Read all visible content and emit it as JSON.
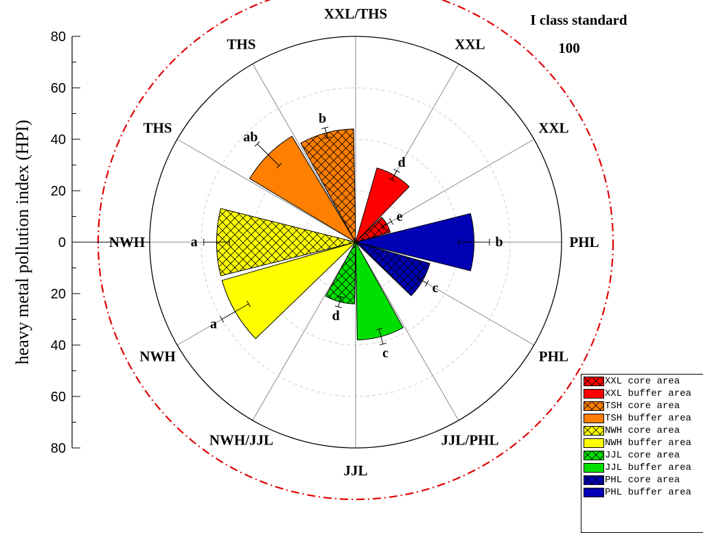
{
  "chart_data": {
    "type": "polar-bar",
    "ylabel": "heavy metal pollution index (HPI)",
    "axis_ticks": [
      "80",
      "60",
      "40",
      "20",
      "0",
      "20",
      "40",
      "60",
      "80"
    ],
    "rmax": 80,
    "reference": {
      "label": "I class standard",
      "value": "100"
    },
    "directions": [
      {
        "label": "XXL/THS",
        "angle": 0
      },
      {
        "label": "XXL",
        "angle": 30
      },
      {
        "label": "XXL",
        "angle": 60
      },
      {
        "label": "PHL",
        "angle": 90
      },
      {
        "label": "PHL",
        "angle": 120
      },
      {
        "label": "JJL/PHL",
        "angle": 150
      },
      {
        "label": "JJL",
        "angle": 180
      },
      {
        "label": "NWH/JJL",
        "angle": 210
      },
      {
        "label": "NWH",
        "angle": 240
      },
      {
        "label": "NWH",
        "angle": 270
      },
      {
        "label": "THS",
        "angle": 300
      },
      {
        "label": "THS",
        "angle": 330
      }
    ],
    "series": [
      {
        "name": "XXL core area",
        "angle": 60,
        "value": 14,
        "error": 2,
        "letter": "e",
        "color": "#ff0000",
        "hatch": true
      },
      {
        "name": "XXL buffer area",
        "angle": 30,
        "value": 30,
        "error": 2,
        "letter": "d",
        "color": "#ff0000",
        "hatch": false
      },
      {
        "name": "TSH core area",
        "angle": 345,
        "value": 44,
        "error": 2,
        "letter": "b",
        "color": "#ff7f00",
        "hatch": true
      },
      {
        "name": "TSH buffer area",
        "angle": 315,
        "value": 48,
        "error": 6,
        "letter": "ab",
        "color": "#ff7f00",
        "hatch": false
      },
      {
        "name": "NWH core area",
        "angle": 270,
        "value": 54,
        "error": 5,
        "letter": "a",
        "color": "#ffff00",
        "hatch": true
      },
      {
        "name": "NWH buffer area",
        "angle": 240,
        "value": 54,
        "error": 6,
        "letter": "a",
        "color": "#ffff00",
        "hatch": false
      },
      {
        "name": "JJL core area",
        "angle": 195,
        "value": 24,
        "error": 2,
        "letter": "d",
        "color": "#00e000",
        "hatch": true
      },
      {
        "name": "JJL buffer area",
        "angle": 165,
        "value": 38,
        "error": 3,
        "letter": "c",
        "color": "#00e000",
        "hatch": false
      },
      {
        "name": "PHL core area",
        "angle": 120,
        "value": 30,
        "error": 2,
        "letter": "c",
        "color": "#0000b4",
        "hatch": true
      },
      {
        "name": "PHL buffer area",
        "angle": 90,
        "value": 46,
        "error": 6,
        "letter": "b",
        "color": "#0000b4",
        "hatch": false
      }
    ]
  },
  "legend": {
    "items": [
      {
        "label": "XXL core area",
        "color": "#ff0000",
        "hatch": true
      },
      {
        "label": "XXL buffer area",
        "color": "#ff0000",
        "hatch": false
      },
      {
        "label": "TSH core area",
        "color": "#ff7f00",
        "hatch": true
      },
      {
        "label": "TSH buffer area",
        "color": "#ff7f00",
        "hatch": false
      },
      {
        "label": "NWH core area",
        "color": "#ffff00",
        "hatch": true
      },
      {
        "label": "NWH buffer area",
        "color": "#ffff00",
        "hatch": false
      },
      {
        "label": "JJL core area",
        "color": "#00e000",
        "hatch": true
      },
      {
        "label": "JJL buffer area",
        "color": "#00e000",
        "hatch": false
      },
      {
        "label": "PHL core area",
        "color": "#0000b4",
        "hatch": true
      },
      {
        "label": "PHL buffer area",
        "color": "#0000b4",
        "hatch": false
      }
    ]
  }
}
